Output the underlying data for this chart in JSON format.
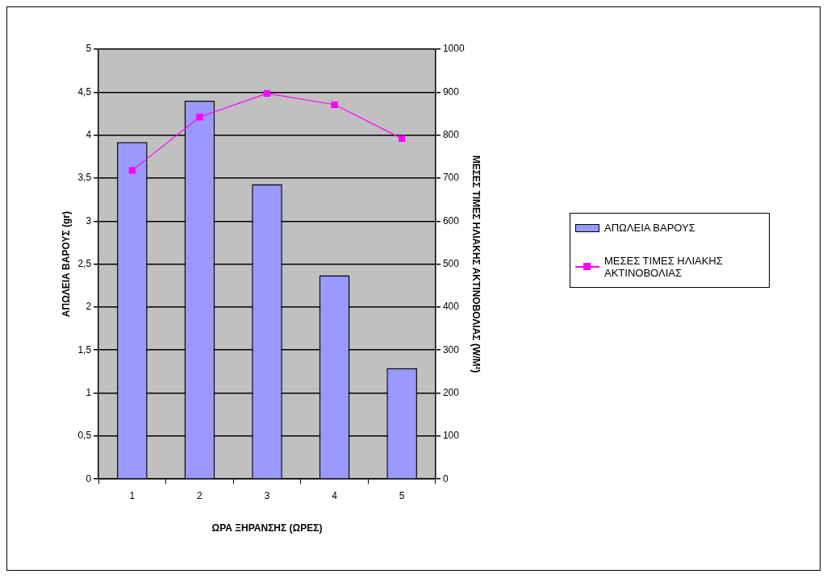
{
  "chart_data": {
    "type": "bar",
    "xlabel": "ΩΡΑ ΞΗΡΑΝΣΗΣ (ΩΡΕΣ)",
    "ylabel": "ΑΠΩΛΕΙΑ ΒΑΡΟΥΣ (gr)",
    "y2label": "ΜΕΣΕΣ ΤΙΜΕΣ ΗΛΙΑΚΗΣ ΑΚΤΙΝΟΒΟΛΙΑΣ (W/M²)",
    "categories": [
      "1",
      "2",
      "3",
      "4",
      "5"
    ],
    "series": [
      {
        "name": "ΑΠΩΛΕΙΑ ΒΑΡΟΥΣ",
        "color": "#9999ff",
        "values": [
          3.92,
          4.4,
          3.43,
          2.37,
          1.29
        ]
      },
      {
        "name": "ΜΕΣΕΣ ΤΙΜΕΣ ΗΛΙΑΚΗΣ ΑΚΤΙΝΟΒΟΛΙΑΣ",
        "type": "line",
        "axis": "y2",
        "color": "#ff00ff",
        "marker": "square",
        "values": [
          718,
          842,
          897,
          871,
          792
        ]
      }
    ],
    "ylim": [
      0,
      5
    ],
    "yticks": [
      0,
      {
        "value": 0.5,
        "label": "0,5"
      },
      1,
      {
        "value": 1.5,
        "label": "1,5"
      },
      2,
      {
        "value": 2.5,
        "label": "2,5"
      },
      3,
      {
        "value": 3.5,
        "label": "3,5"
      },
      4,
      {
        "value": 4.5,
        "label": "4,5"
      },
      5
    ],
    "y2lim": [
      0,
      1000
    ],
    "y2ticks": [
      0,
      100,
      200,
      300,
      400,
      500,
      600,
      700,
      800,
      900,
      1000
    ],
    "grid": "y",
    "legend": "right"
  }
}
